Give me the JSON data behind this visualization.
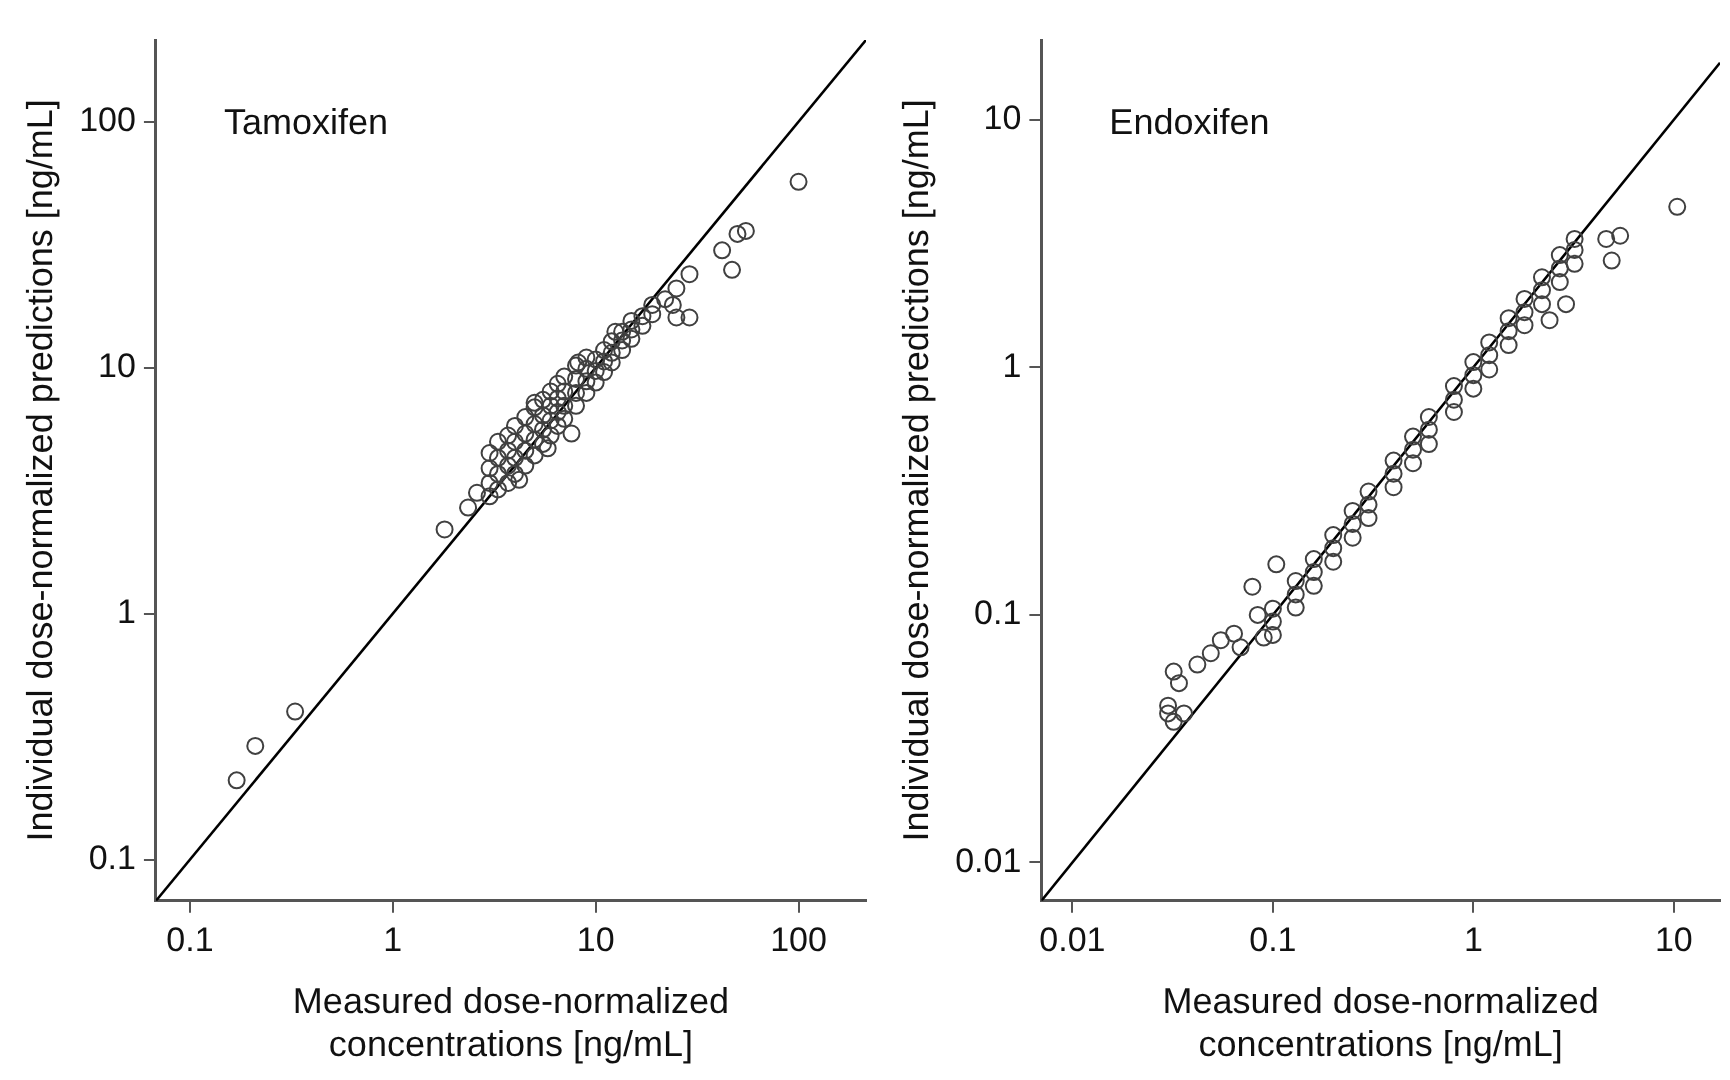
{
  "chart_data": [
    {
      "type": "scatter",
      "title": "Tamoxifen",
      "xlabel": "Measured dose-normalized concentrations [ng/mL]",
      "ylabel": "Individual dose-normalized predictions [ng/mL]",
      "xlim": [
        0.068,
        215
      ],
      "ylim": [
        0.068,
        215
      ],
      "xticks": [
        0.1,
        1,
        10,
        100
      ],
      "yticks": [
        0.1,
        1,
        10,
        100
      ],
      "log": "xy",
      "grid": false,
      "legend": false,
      "series": [
        {
          "type": "line",
          "color": "#000000",
          "marker": "none",
          "x": [
            0.068,
            215
          ],
          "values": [
            0.068,
            215
          ]
        },
        {
          "color": "#404040",
          "marker": "circle",
          "x": [
            0.17,
            0.21,
            0.33,
            1.8,
            2.35,
            2.6,
            100,
            55,
            50,
            42,
            47,
            29,
            25,
            29,
            25,
            24,
            22,
            5.0,
            4.2,
            5.8,
            7.6,
            8.2,
            12.5,
            3.0,
            3.0,
            3.0,
            3.0,
            3.3,
            3.3,
            3.3,
            3.3,
            3.7,
            3.7,
            3.7,
            3.7,
            4.0,
            4.0,
            4.0,
            4.0,
            4.5,
            4.5,
            4.5,
            4.5,
            5.0,
            5.0,
            5.0,
            5.0,
            5.5,
            5.5,
            5.5,
            5.5,
            6.0,
            6.0,
            6.0,
            6.0,
            6.5,
            6.5,
            6.5,
            6.5,
            7.0,
            7.0,
            7.0,
            7.0,
            8.0,
            8.0,
            8.0,
            8.0,
            9.0,
            9.0,
            9.0,
            9.0,
            10,
            10,
            10,
            11,
            11,
            11,
            12,
            12,
            12,
            13.5,
            13.5,
            13.5,
            15,
            15,
            15,
            17,
            17,
            19,
            19
          ],
          "values": [
            0.21,
            0.29,
            0.4,
            2.2,
            2.7,
            3.1,
            57,
            36,
            35,
            30,
            25,
            16,
            16,
            24,
            21,
            18,
            19,
            7.2,
            3.5,
            4.7,
            5.4,
            10.5,
            14,
            3.0,
            3.4,
            3.9,
            4.5,
            3.2,
            3.7,
            4.3,
            5.0,
            3.4,
            4.0,
            4.6,
            5.3,
            3.7,
            4.3,
            5.0,
            5.8,
            4.0,
            4.6,
            5.4,
            6.3,
            4.4,
            5.1,
            5.9,
            6.9,
            4.9,
            5.6,
            6.4,
            7.4,
            5.3,
            6.1,
            7.0,
            8.0,
            5.8,
            6.6,
            7.5,
            8.6,
            6.2,
            7.0,
            8.0,
            9.2,
            7.0,
            7.9,
            9.0,
            10.2,
            7.9,
            8.8,
            9.9,
            11,
            8.7,
            9.7,
            10.8,
            9.6,
            10.6,
            11.8,
            10.5,
            11.5,
            12.8,
            11.8,
            12.9,
            14,
            13.1,
            14.3,
            15.5,
            14.8,
            16.2,
            16.5,
            18
          ]
        }
      ]
    },
    {
      "type": "scatter",
      "title": "Endoxifen",
      "xlabel": "Measured dose-normalized concentrations [ng/mL]",
      "ylabel": "Individual dose-normalized predictions [ng/mL]",
      "xlim": [
        0.007,
        17
      ],
      "ylim": [
        0.007,
        21
      ],
      "xticks": [
        0.01,
        0.1,
        1,
        10
      ],
      "yticks": [
        0.01,
        0.1,
        1,
        10
      ],
      "log": "xy",
      "grid": false,
      "legend": false,
      "series": [
        {
          "type": "line",
          "color": "#000000",
          "marker": "none",
          "x": [
            0.007,
            17
          ],
          "values": [
            0.007,
            17
          ]
        },
        {
          "color": "#404040",
          "marker": "circle",
          "x": [
            10.4,
            5.4,
            4.9,
            4.6,
            2.9,
            2.4,
            0.032,
            0.03,
            0.03,
            0.036,
            0.034,
            0.032,
            0.042,
            0.049,
            0.055,
            0.064,
            0.079,
            0.069,
            0.104,
            0.09,
            0.084,
            0.1,
            0.1,
            0.1,
            0.13,
            0.13,
            0.13,
            0.16,
            0.16,
            0.16,
            0.2,
            0.2,
            0.2,
            0.25,
            0.25,
            0.25,
            0.3,
            0.3,
            0.3,
            0.4,
            0.4,
            0.4,
            0.5,
            0.5,
            0.5,
            0.6,
            0.6,
            0.6,
            0.8,
            0.8,
            0.8,
            1.0,
            1.0,
            1.0,
            1.2,
            1.2,
            1.2,
            1.5,
            1.5,
            1.5,
            1.8,
            1.8,
            1.8,
            2.2,
            2.2,
            2.2,
            2.7,
            2.7,
            2.7,
            3.2,
            3.2,
            3.2
          ],
          "values": [
            4.45,
            3.4,
            2.7,
            3.3,
            1.8,
            1.55,
            0.059,
            0.043,
            0.04,
            0.04,
            0.053,
            0.037,
            0.063,
            0.07,
            0.079,
            0.084,
            0.13,
            0.074,
            0.16,
            0.081,
            0.1,
            0.083,
            0.094,
            0.106,
            0.107,
            0.121,
            0.137,
            0.131,
            0.149,
            0.168,
            0.164,
            0.186,
            0.21,
            0.205,
            0.233,
            0.263,
            0.246,
            0.279,
            0.315,
            0.328,
            0.372,
            0.42,
            0.41,
            0.465,
            0.525,
            0.49,
            0.56,
            0.63,
            0.66,
            0.74,
            0.84,
            0.82,
            0.93,
            1.05,
            0.98,
            1.12,
            1.26,
            1.23,
            1.4,
            1.58,
            1.48,
            1.67,
            1.89,
            1.8,
            2.05,
            2.31,
            2.21,
            2.51,
            2.84,
            2.62,
            2.98,
            3.3
          ]
        }
      ]
    }
  ]
}
